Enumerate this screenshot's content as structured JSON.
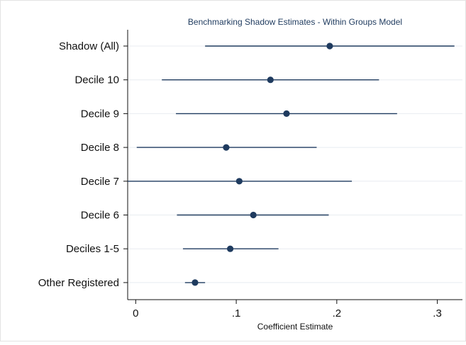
{
  "chart_data": {
    "type": "scatter",
    "title": "Benchmarking Shadow Estimates - Within Groups Model",
    "xlabel": "Coefficient Estimate",
    "ylabel": "",
    "xlim": [
      -0.008,
      0.325
    ],
    "x_ticks": [
      {
        "value": 0,
        "label": "0"
      },
      {
        "value": 0.1,
        "label": ".1"
      },
      {
        "value": 0.2,
        "label": ".2"
      },
      {
        "value": 0.3,
        "label": ".3"
      }
    ],
    "grid": "horizontal",
    "legend": "none",
    "series": [
      {
        "points": [
          {
            "label": "Shadow (All)",
            "estimate": 0.193,
            "ci_low": 0.069,
            "ci_high": 0.317
          },
          {
            "label": "Decile 10",
            "estimate": 0.134,
            "ci_low": 0.026,
            "ci_high": 0.242
          },
          {
            "label": "Decile 9",
            "estimate": 0.15,
            "ci_low": 0.04,
            "ci_high": 0.26
          },
          {
            "label": "Decile 8",
            "estimate": 0.09,
            "ci_low": 0.001,
            "ci_high": 0.18
          },
          {
            "label": "Decile 7",
            "estimate": 0.103,
            "ci_low": -0.008,
            "ci_high": 0.215
          },
          {
            "label": "Decile 6",
            "estimate": 0.117,
            "ci_low": 0.041,
            "ci_high": 0.192
          },
          {
            "label": "Deciles 1-5",
            "estimate": 0.094,
            "ci_low": 0.047,
            "ci_high": 0.142
          },
          {
            "label": "Other Registered",
            "estimate": 0.059,
            "ci_low": 0.049,
            "ci_high": 0.069
          }
        ]
      }
    ]
  },
  "colors": {
    "marker": "#1f3b5f",
    "ci_line": "#1f3b5f",
    "axis": "#111111",
    "grid": "#e8ecf0",
    "title": "#1f3b5f",
    "text": "#111111",
    "plot_bg": "#ffffff",
    "page_border": "#d9d9d9"
  }
}
